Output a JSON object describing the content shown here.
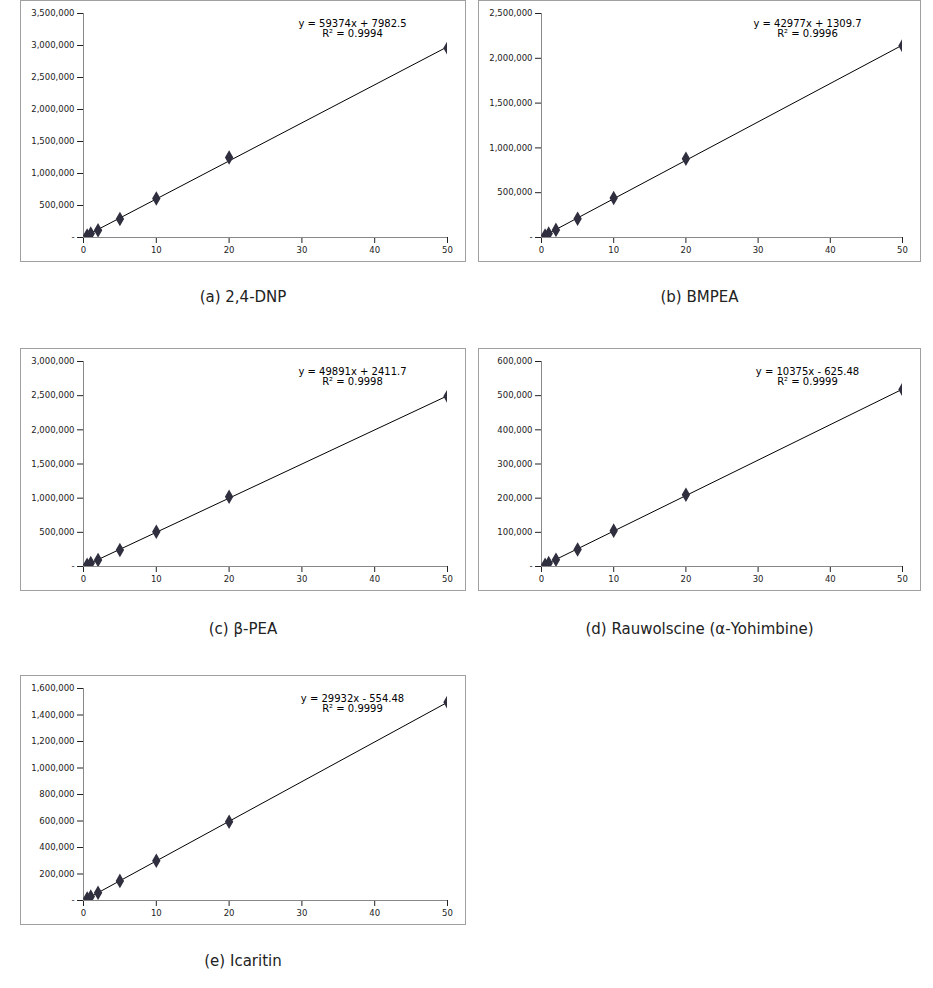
{
  "chart_data": [
    {
      "type": "scatter",
      "title": "(a) 2,4-DNP",
      "marker": "diamond",
      "line_style": "solid",
      "color": "#2f2f3f",
      "x": [
        0.5,
        1,
        2,
        5,
        10,
        20,
        50
      ],
      "values": [
        30000,
        62000,
        112000,
        290000,
        610000,
        1250000,
        2960000
      ],
      "xlim": [
        0,
        50
      ],
      "xticks": [
        0,
        10,
        20,
        30,
        40,
        50
      ],
      "ylim": [
        0,
        3500000
      ],
      "yticks": [
        {
          "value": 0,
          "label": "-"
        },
        {
          "value": 500000,
          "label": "500,000"
        },
        {
          "value": 1000000,
          "label": "1,000,000"
        },
        {
          "value": 1500000,
          "label": "1,500,000"
        },
        {
          "value": 2000000,
          "label": "2,000,000"
        },
        {
          "value": 2500000,
          "label": "2,500,000"
        },
        {
          "value": 3000000,
          "label": "3,000,000"
        },
        {
          "value": 3500000,
          "label": "3,500,000"
        }
      ],
      "annotations": [
        "y = 59374x + 7982.5",
        "R² = 0.9994"
      ]
    },
    {
      "type": "scatter",
      "title": "(b) BMPEA",
      "marker": "diamond",
      "line_style": "solid",
      "color": "#2f2f3f",
      "x": [
        0.5,
        1,
        2,
        5,
        10,
        20,
        50
      ],
      "values": [
        22000,
        44000,
        85000,
        210000,
        440000,
        880000,
        2140000
      ],
      "xlim": [
        0,
        50
      ],
      "xticks": [
        0,
        10,
        20,
        30,
        40,
        50
      ],
      "ylim": [
        0,
        2500000
      ],
      "yticks": [
        {
          "value": 0,
          "label": "-"
        },
        {
          "value": 500000,
          "label": "500,000"
        },
        {
          "value": 1000000,
          "label": "1,000,000"
        },
        {
          "value": 1500000,
          "label": "1,500,000"
        },
        {
          "value": 2000000,
          "label": "2,000,000"
        },
        {
          "value": 2500000,
          "label": "2,500,000"
        }
      ],
      "annotations": [
        "y = 42977x + 1309.7",
        "R² = 0.9996"
      ]
    },
    {
      "type": "scatter",
      "title": "(c) β-PEA",
      "marker": "diamond",
      "line_style": "solid",
      "color": "#2f2f3f",
      "x": [
        0.5,
        1,
        2,
        5,
        10,
        20,
        50
      ],
      "values": [
        25000,
        50000,
        95000,
        240000,
        510000,
        1020000,
        2490000
      ],
      "xlim": [
        0,
        50
      ],
      "xticks": [
        0,
        10,
        20,
        30,
        40,
        50
      ],
      "ylim": [
        0,
        3000000
      ],
      "yticks": [
        {
          "value": 0,
          "label": "-"
        },
        {
          "value": 500000,
          "label": "500,000"
        },
        {
          "value": 1000000,
          "label": "1,000,000"
        },
        {
          "value": 1500000,
          "label": "1,500,000"
        },
        {
          "value": 2000000,
          "label": "2,000,000"
        },
        {
          "value": 2500000,
          "label": "2,500,000"
        },
        {
          "value": 3000000,
          "label": "3,000,000"
        }
      ],
      "annotations": [
        "y = 49891x + 2411.7",
        "R² = 0.9998"
      ]
    },
    {
      "type": "scatter",
      "title": "(d) Rauwolscine (α-Yohimbine)",
      "marker": "diamond",
      "line_style": "solid",
      "color": "#2f2f3f",
      "x": [
        0.5,
        1,
        2,
        5,
        10,
        20,
        50
      ],
      "values": [
        5000,
        10000,
        20000,
        50000,
        105000,
        210000,
        518000
      ],
      "xlim": [
        0,
        50
      ],
      "xticks": [
        0,
        10,
        20,
        30,
        40,
        50
      ],
      "ylim": [
        0,
        600000
      ],
      "yticks": [
        {
          "value": 0,
          "label": "-"
        },
        {
          "value": 100000,
          "label": "100,000"
        },
        {
          "value": 200000,
          "label": "200,000"
        },
        {
          "value": 300000,
          "label": "300,000"
        },
        {
          "value": 400000,
          "label": "400,000"
        },
        {
          "value": 500000,
          "label": "500,000"
        },
        {
          "value": 600000,
          "label": "600,000"
        }
      ],
      "annotations": [
        "y = 10375x - 625.48",
        "R² = 0.9999"
      ]
    },
    {
      "type": "scatter",
      "title": "(e) Icaritin",
      "marker": "diamond",
      "line_style": "solid",
      "color": "#2f2f3f",
      "x": [
        0.5,
        1,
        2,
        5,
        10,
        20,
        50
      ],
      "values": [
        15000,
        30000,
        58000,
        148000,
        300000,
        595000,
        1497000
      ],
      "xlim": [
        0,
        50
      ],
      "xticks": [
        0,
        10,
        20,
        30,
        40,
        50
      ],
      "ylim": [
        0,
        1600000
      ],
      "yticks": [
        {
          "value": 0,
          "label": "-"
        },
        {
          "value": 200000,
          "label": "200,000"
        },
        {
          "value": 400000,
          "label": "400,000"
        },
        {
          "value": 600000,
          "label": "600,000"
        },
        {
          "value": 800000,
          "label": "800,000"
        },
        {
          "value": 1000000,
          "label": "1,000,000"
        },
        {
          "value": 1200000,
          "label": "1,200,000"
        },
        {
          "value": 1400000,
          "label": "1,400,000"
        },
        {
          "value": 1600000,
          "label": "1,600,000"
        }
      ],
      "annotations": [
        "y = 29932x - 554.48",
        "R² = 0.9999"
      ]
    }
  ]
}
